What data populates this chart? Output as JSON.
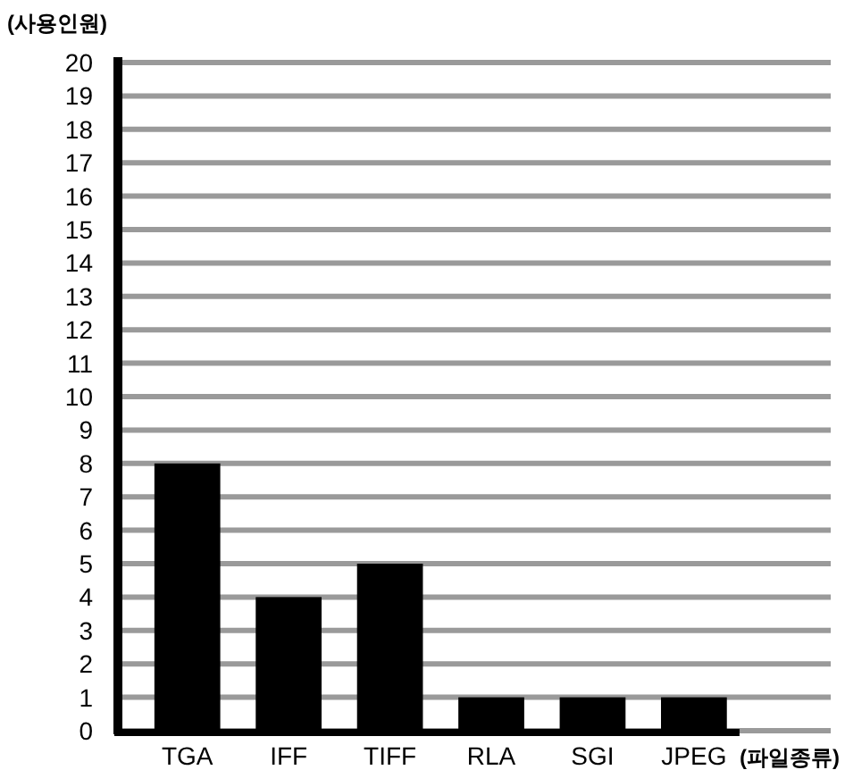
{
  "chart_data": {
    "type": "bar",
    "ylabel": "(사용인원)",
    "xlabel": "(파일종류)",
    "categories": [
      "TGA",
      "IFF",
      "TIFF",
      "RLA",
      "SGI",
      "JPEG"
    ],
    "values": [
      8,
      4,
      5,
      1,
      1,
      1
    ],
    "color": "#000000",
    "ylim": [
      0,
      20
    ],
    "yticks": [
      0,
      1,
      2,
      3,
      4,
      5,
      6,
      7,
      8,
      9,
      10,
      11,
      12,
      13,
      14,
      15,
      16,
      17,
      18,
      19,
      20
    ],
    "grid": "y"
  }
}
